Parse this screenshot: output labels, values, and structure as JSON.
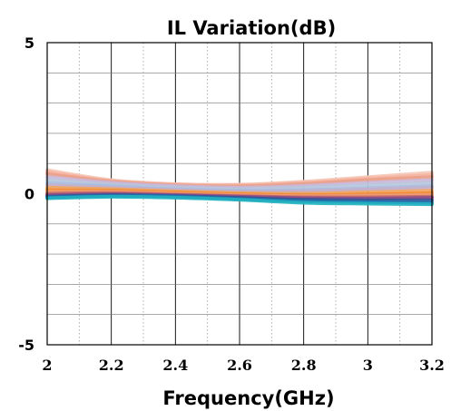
{
  "chart_data": {
    "type": "line",
    "title": "IL Variation(dB)",
    "xlabel": "Frequency(GHz)",
    "ylabel": "",
    "xlim": [
      2,
      3.2
    ],
    "ylim": [
      -5,
      5
    ],
    "xticks": [
      "2",
      "2.2",
      "2.4",
      "2.6",
      "2.8",
      "3",
      "3.2"
    ],
    "yticks": [
      "5",
      "0",
      "-5"
    ],
    "grid": true,
    "legend": "none",
    "x": [
      2.0,
      2.2,
      2.4,
      2.6,
      2.8,
      3.0,
      3.2
    ],
    "series": [
      {
        "color": "#f3c5b5",
        "values": [
          0.78,
          0.45,
          0.32,
          0.3,
          0.4,
          0.55,
          0.7
        ]
      },
      {
        "color": "#f7b3a0",
        "values": [
          0.72,
          0.42,
          0.3,
          0.28,
          0.36,
          0.5,
          0.62
        ]
      },
      {
        "color": "#e8a08a",
        "values": [
          0.65,
          0.4,
          0.28,
          0.24,
          0.32,
          0.45,
          0.55
        ]
      },
      {
        "color": "#c9b7d9",
        "values": [
          0.55,
          0.36,
          0.25,
          0.2,
          0.26,
          0.36,
          0.45
        ]
      },
      {
        "color": "#b7c7dd",
        "values": [
          0.45,
          0.3,
          0.2,
          0.15,
          0.2,
          0.28,
          0.35
        ]
      },
      {
        "color": "#a7bce0",
        "values": [
          0.35,
          0.25,
          0.15,
          0.1,
          0.12,
          0.18,
          0.25
        ]
      },
      {
        "color": "#c5aec8",
        "values": [
          0.28,
          0.2,
          0.12,
          0.06,
          0.08,
          0.14,
          0.2
        ]
      },
      {
        "color": "#f0a35e",
        "values": [
          0.2,
          0.15,
          0.08,
          0.02,
          0.0,
          0.05,
          0.1
        ]
      },
      {
        "color": "#f28b30",
        "values": [
          0.12,
          0.1,
          0.04,
          -0.02,
          -0.05,
          -0.02,
          0.02
        ]
      },
      {
        "color": "#ef9a77",
        "values": [
          0.06,
          0.06,
          0.0,
          -0.05,
          -0.08,
          -0.06,
          -0.04
        ]
      },
      {
        "color": "#c06a6a",
        "values": [
          0.0,
          0.02,
          -0.03,
          -0.08,
          -0.12,
          -0.12,
          -0.1
        ]
      },
      {
        "color": "#8a4a8a",
        "values": [
          -0.05,
          -0.02,
          -0.05,
          -0.1,
          -0.15,
          -0.16,
          -0.14
        ]
      },
      {
        "color": "#2f5597",
        "values": [
          -0.1,
          -0.05,
          -0.08,
          -0.14,
          -0.2,
          -0.22,
          -0.22
        ]
      },
      {
        "color": "#1f77b4",
        "values": [
          -0.12,
          -0.08,
          -0.1,
          -0.18,
          -0.25,
          -0.28,
          -0.3
        ]
      },
      {
        "color": "#20b2c0",
        "values": [
          -0.15,
          -0.1,
          -0.13,
          -0.2,
          -0.3,
          -0.33,
          -0.35
        ]
      }
    ]
  }
}
